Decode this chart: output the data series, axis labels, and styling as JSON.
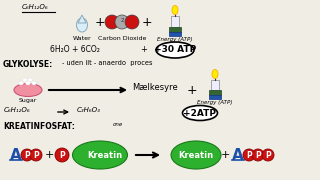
{
  "bg_color": "#f0ede5",
  "title_top": "C₆H₁₂O₆",
  "water_label": "Water",
  "co2_label": "Carbon Dioxide",
  "energy_label": "Energy (ATP)",
  "atp30_label": "+30 ATP",
  "equation_top1": "6H₂O + 6CO₂",
  "equation_top2": "+",
  "glykolyse_label": "GLYKOLYSE:",
  "glykolyse_desc": "- uden ilt - anaerdo  proces",
  "maelkesyre_label": "Mælkesyre",
  "sugar_label": "Sugar",
  "eq_bottom1": "C₆H₁₂O₆",
  "eq_bottom2": "C₃H₆O₃",
  "atp2_label": "+2ATP",
  "kreat_label": "KREATINFOSFAT:",
  "kreatin_label": "Kreatin",
  "atp_blue": "#1a4faa",
  "red_color": "#cc1111",
  "green_color": "#2db02d",
  "dark_red": "#880000",
  "grey_color": "#aaaaaa"
}
